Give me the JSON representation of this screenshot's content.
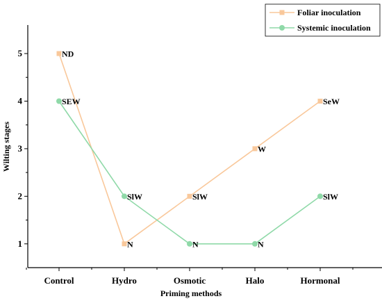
{
  "chart_data": {
    "type": "line",
    "xlabel": "Priming methods",
    "ylabel": "Wilting stages",
    "categories": [
      "Control",
      "Hydro",
      "Osmotic",
      "Halo",
      "Hormonal"
    ],
    "yticks": [
      1,
      2,
      3,
      4,
      5
    ],
    "ylim": [
      0.5,
      5.6
    ],
    "legend_position": "top-right",
    "series": [
      {
        "name": "Foliar inoculation",
        "color": "#F9C89B",
        "marker": "square",
        "values": [
          5,
          1,
          2,
          3,
          4
        ],
        "labels": [
          "ND",
          "N",
          "SlW",
          "W",
          "SeW"
        ]
      },
      {
        "name": "Systemic inoculation",
        "color": "#8FD9A8",
        "marker": "circle",
        "values": [
          4,
          2,
          1,
          1,
          2
        ],
        "labels": [
          "SEW",
          "SlW",
          "N",
          "N",
          "SlW"
        ]
      }
    ]
  }
}
